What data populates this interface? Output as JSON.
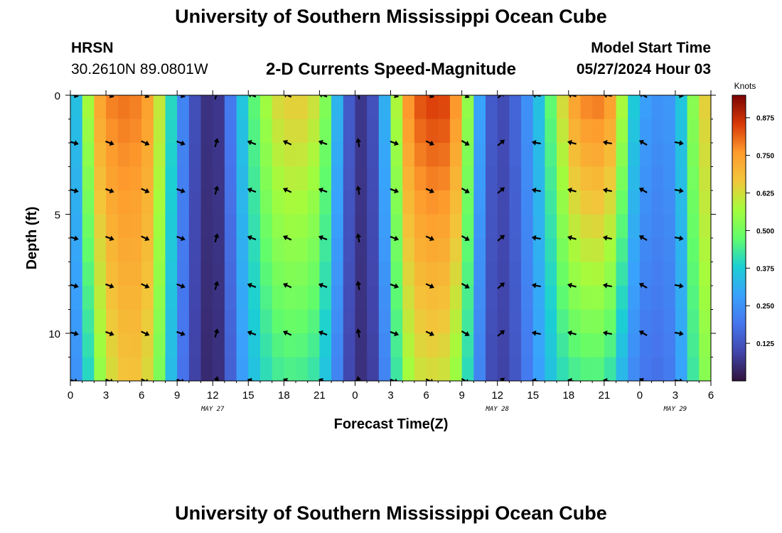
{
  "header": {
    "title": "University of Southern Mississippi Ocean Cube",
    "station": "HRSN",
    "coords": "30.2610N  89.0801W",
    "chart_title": "2-D Currents Speed-Magnitude",
    "model_label": "Model Start Time",
    "model_time": "05/27/2024 Hour 03"
  },
  "footer": {
    "title": "University of Southern Mississippi Ocean Cube"
  },
  "chart_data": {
    "type": "heatmap",
    "title": "2-D Currents Speed-Magnitude",
    "xlabel": "Forecast Time(Z)",
    "ylabel": "Depth (ft)",
    "x_range_hours": [
      0,
      54
    ],
    "y_range_ft": [
      0,
      12
    ],
    "x_ticks": [
      "0",
      "3",
      "6",
      "9",
      "12",
      "15",
      "18",
      "21",
      "0",
      "3",
      "6",
      "9",
      "12",
      "15",
      "18",
      "21",
      "0",
      "3",
      "6"
    ],
    "y_ticks": [
      "0",
      "5",
      "10"
    ],
    "date_labels": [
      {
        "label": "MAY 27",
        "hour": 12
      },
      {
        "label": "MAY 28",
        "hour": 36
      },
      {
        "label": "MAY 29",
        "hour": 51
      }
    ],
    "colorbar": {
      "unit": "Knots",
      "range": [
        0,
        0.95
      ],
      "ticks": [
        "0.125",
        "0.250",
        "0.375",
        "0.500",
        "0.625",
        "0.750",
        "0.875"
      ]
    },
    "speed_profile": {
      "hours": [
        0,
        1,
        2,
        3,
        4,
        5,
        6,
        7,
        8,
        9,
        10,
        11,
        12,
        13,
        14,
        15,
        16,
        17,
        18,
        19,
        20,
        21,
        22,
        23,
        24,
        25,
        26,
        27,
        28,
        29,
        30,
        31,
        32,
        33,
        34,
        35,
        36,
        37,
        38,
        39,
        40,
        41,
        42,
        43,
        44,
        45,
        46,
        47,
        48,
        49,
        50,
        51,
        52,
        53,
        54
      ],
      "surface_kn": [
        0.25,
        0.45,
        0.7,
        0.78,
        0.8,
        0.8,
        0.78,
        0.72,
        0.5,
        0.3,
        0.15,
        0.08,
        0.04,
        0.1,
        0.3,
        0.42,
        0.52,
        0.62,
        0.65,
        0.66,
        0.65,
        0.6,
        0.45,
        0.2,
        0.08,
        0.06,
        0.18,
        0.45,
        0.72,
        0.82,
        0.85,
        0.86,
        0.84,
        0.7,
        0.4,
        0.18,
        0.1,
        0.12,
        0.2,
        0.3,
        0.4,
        0.55,
        0.72,
        0.78,
        0.8,
        0.8,
        0.72,
        0.45,
        0.3,
        0.26,
        0.25,
        0.28,
        0.45,
        0.62,
        0.68
      ],
      "bottom_kn": [
        0.2,
        0.3,
        0.48,
        0.6,
        0.65,
        0.68,
        0.66,
        0.6,
        0.42,
        0.25,
        0.12,
        0.06,
        0.03,
        0.08,
        0.22,
        0.32,
        0.38,
        0.42,
        0.44,
        0.44,
        0.43,
        0.4,
        0.3,
        0.14,
        0.06,
        0.05,
        0.12,
        0.32,
        0.52,
        0.6,
        0.62,
        0.62,
        0.6,
        0.5,
        0.3,
        0.14,
        0.08,
        0.1,
        0.16,
        0.24,
        0.32,
        0.38,
        0.42,
        0.44,
        0.45,
        0.44,
        0.38,
        0.26,
        0.2,
        0.18,
        0.18,
        0.22,
        0.35,
        0.5,
        0.55
      ]
    },
    "vector_directions": {
      "hours": [
        0,
        3,
        6,
        9,
        12,
        15,
        18,
        21,
        24,
        27,
        30,
        33,
        36,
        39,
        42,
        45,
        48,
        51
      ],
      "angle_deg": [
        15,
        20,
        25,
        20,
        -75,
        200,
        205,
        200,
        260,
        20,
        25,
        30,
        -40,
        190,
        195,
        190,
        210,
        10
      ]
    }
  }
}
